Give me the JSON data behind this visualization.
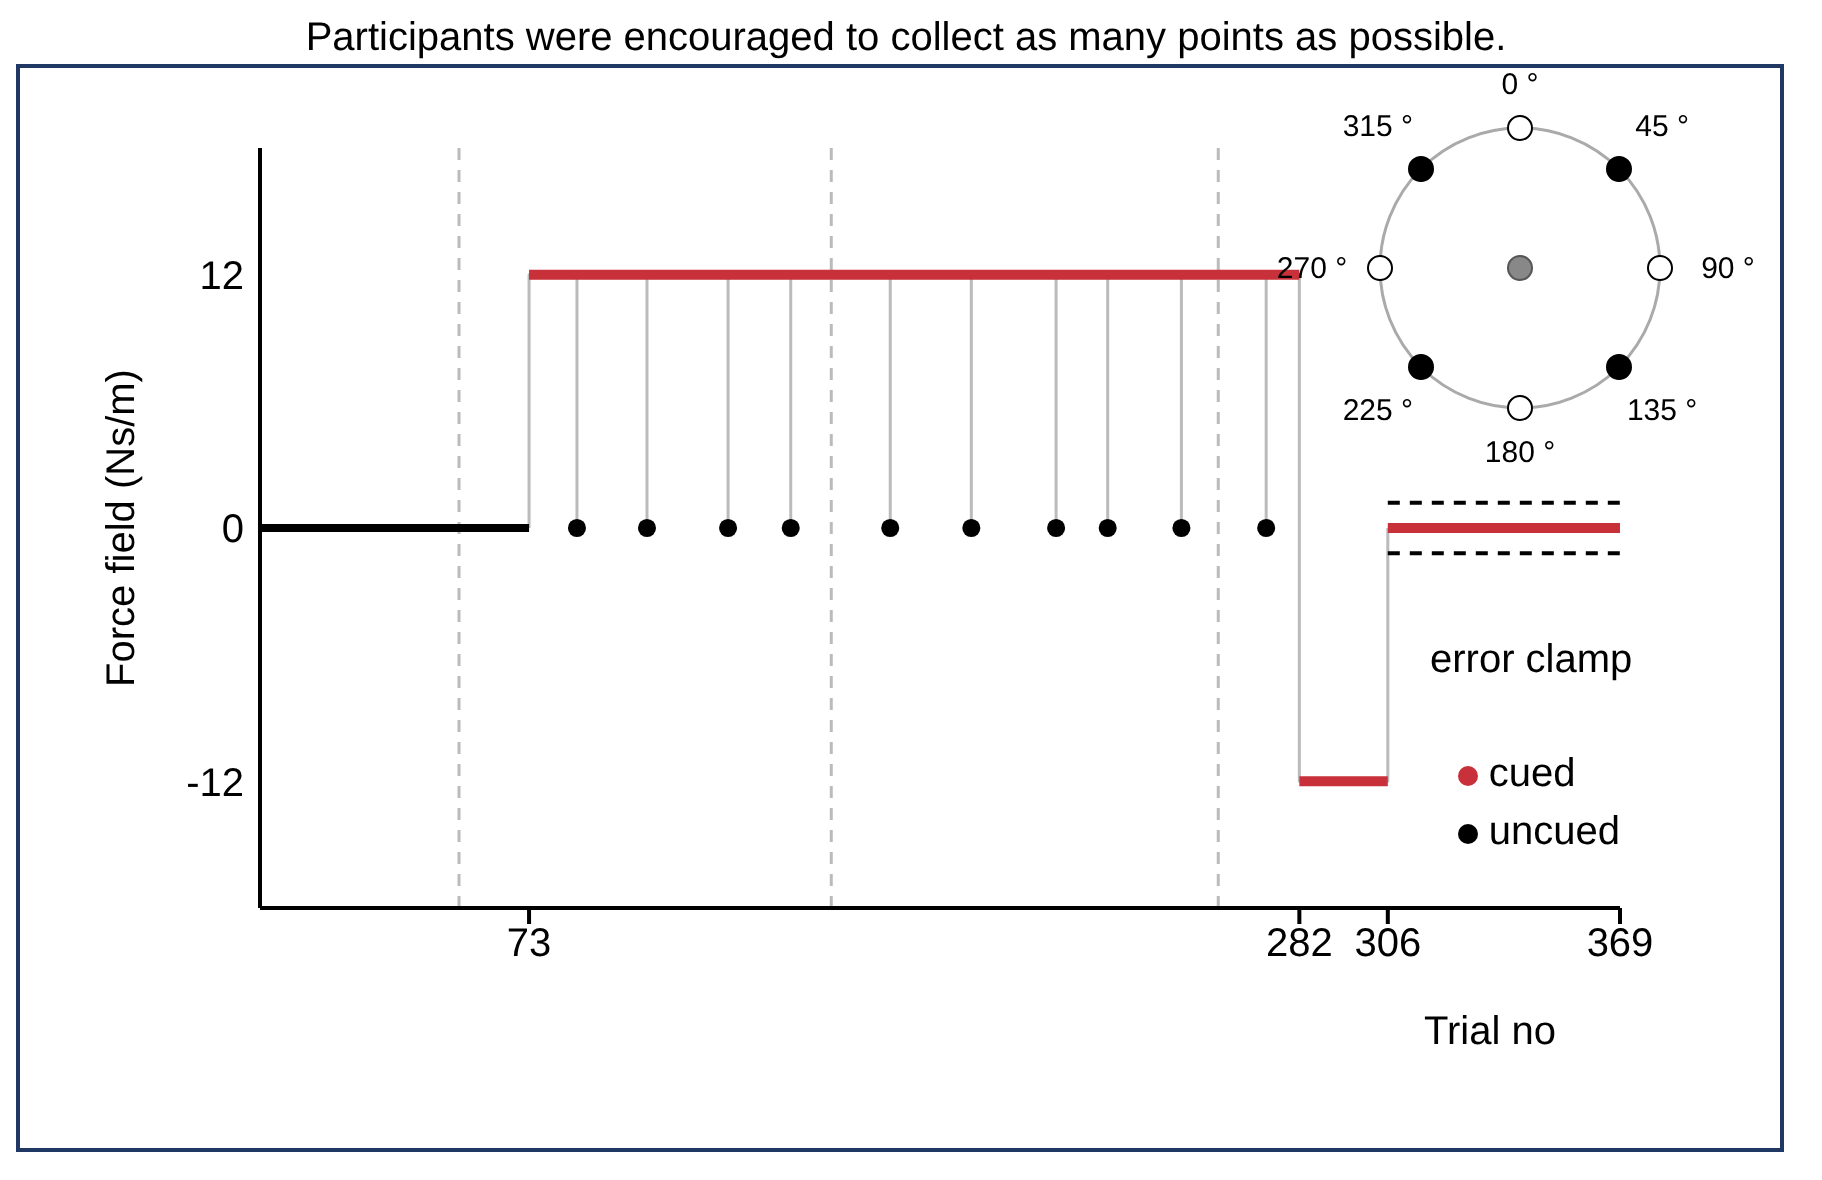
{
  "chart_data": {
    "type": "line",
    "title": "Participants were encouraged to collect as many points as possible.",
    "xlabel": "Trial no",
    "ylabel": "Force field (Ns/m)",
    "xlim": [
      0,
      369
    ],
    "xticks": [
      73,
      282,
      306,
      369
    ],
    "ylim": [
      -18,
      18
    ],
    "yticks": [
      -12,
      0,
      12
    ],
    "grid": false,
    "legend": "bottom right",
    "marker": "none",
    "series": [
      {
        "color": "#bbbbbb",
        "x": [
          73,
          73,
          86,
          86,
          86,
          105,
          105,
          105,
          127,
          127,
          127,
          144,
          144,
          144,
          171,
          171,
          171,
          193,
          193,
          193,
          216,
          216,
          216,
          230,
          230,
          230,
          250,
          250,
          250,
          273,
          273,
          273,
          282,
          282,
          306,
          306
        ],
        "values": [
          0,
          12,
          12,
          0,
          12,
          12,
          0,
          12,
          12,
          0,
          12,
          12,
          0,
          12,
          12,
          0,
          12,
          12,
          0,
          12,
          12,
          0,
          12,
          12,
          0,
          12,
          12,
          0,
          12,
          12,
          0,
          12,
          12,
          -12,
          -12,
          0
        ]
      },
      {
        "color": "#000000",
        "x": [
          0,
          73
        ],
        "values": [
          0,
          0
        ]
      },
      {
        "name": "cued",
        "color": "#c8303a",
        "x": [
          73,
          282,
          null,
          282,
          306,
          null,
          306,
          369
        ],
        "values": [
          12,
          12,
          null,
          -12,
          -12,
          null,
          0,
          0
        ]
      },
      {
        "name": "uncued",
        "type": "scatter",
        "marker": "circle",
        "color": "#000000",
        "x": [
          86,
          105,
          127,
          144,
          171,
          193,
          216,
          230,
          250,
          273
        ],
        "values": [
          0,
          0,
          0,
          0,
          0,
          0,
          0,
          0,
          0,
          0
        ]
      },
      {
        "line_style": "dashed",
        "color": "#000000",
        "x": [
          306,
          369
        ],
        "values": [
          1.2,
          1.2
        ]
      },
      {
        "line_style": "dashed",
        "color": "#000000",
        "x": [
          306,
          369
        ],
        "values": [
          -1.2,
          -1.2
        ]
      }
    ],
    "ref_lines": [
      {
        "axis": "x",
        "value": 54,
        "color": "#bbbbbb",
        "line_style": "dashed"
      },
      {
        "axis": "x",
        "value": 155,
        "color": "#bbbbbb",
        "line_style": "dashed"
      },
      {
        "axis": "x",
        "value": 260,
        "color": "#bbbbbb",
        "line_style": "dashed"
      }
    ],
    "annotations": [
      "error clamp",
      "0 °",
      "45 °",
      "90 °",
      "135 °",
      "180 °",
      "225 °",
      "270 °",
      "315 °"
    ]
  }
}
